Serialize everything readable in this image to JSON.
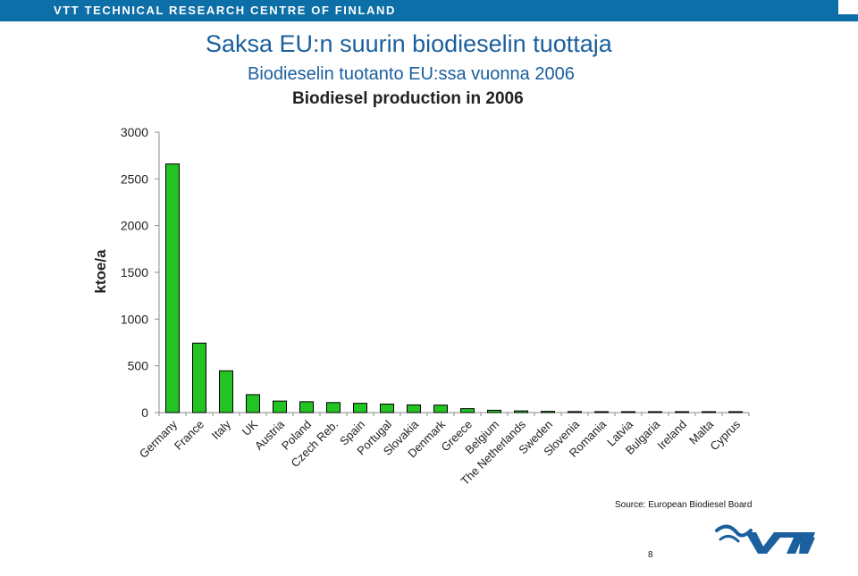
{
  "header": {
    "org": "VTT TECHNICAL RESEARCH CENTRE OF FINLAND",
    "title": "Saksa EU:n suurin biodieselin tuottaja",
    "subtitle": "Biodieselin tuotanto EU:ssa vuonna 2006"
  },
  "footer": {
    "source": "Source: European Biodiesel Board",
    "page_number": "8",
    "logo_text": "VTT"
  },
  "colors": {
    "bar_fill": "#22c322",
    "brand_blue": "#0d6fa8",
    "title_blue": "#1a5f9e"
  },
  "chart_data": {
    "type": "bar",
    "title": "Biodiesel production in 2006",
    "ylabel": "ktoe/a",
    "xlabel": "",
    "ylim": [
      0,
      3000
    ],
    "yticks": [
      0,
      500,
      1000,
      1500,
      2000,
      2500,
      3000
    ],
    "grid": false,
    "categories": [
      "Germany",
      "France",
      "Italy",
      "UK",
      "Austria",
      "Poland",
      "Czech Reb.",
      "Spain",
      "Portugal",
      "Slovakia",
      "Denmark",
      "Greece",
      "Belgium",
      "The Netherlands",
      "Sweden",
      "Slovenia",
      "Romania",
      "Latvia",
      "Bulgaria",
      "Ireland",
      "Malta",
      "Cyprus"
    ],
    "values": [
      2660,
      743,
      447,
      192,
      123,
      116,
      107,
      99,
      91,
      82,
      80,
      42,
      25,
      18,
      13,
      11,
      10,
      7,
      4,
      4,
      2,
      1
    ]
  }
}
